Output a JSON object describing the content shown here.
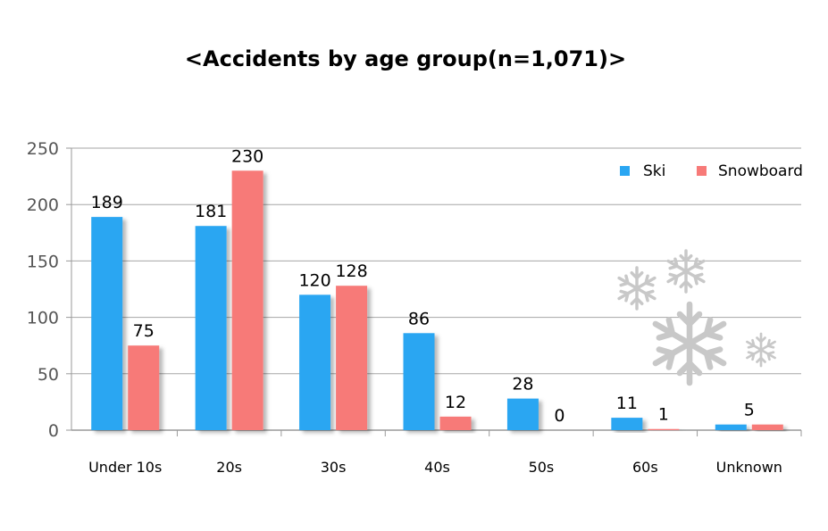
{
  "chart_data": {
    "type": "bar",
    "title": "<Accidents by age group(n=1,071)>",
    "categories": [
      "Under 10s",
      "20s",
      "30s",
      "40s",
      "50s",
      "60s",
      "Unknown"
    ],
    "series": [
      {
        "name": "Ski",
        "values": [
          189,
          181,
          120,
          86,
          28,
          11,
          5
        ],
        "color": "#2aa6f2"
      },
      {
        "name": "Snowboard",
        "values": [
          75,
          230,
          128,
          12,
          0,
          1,
          5
        ],
        "color": "#f77a78"
      }
    ],
    "labels": [
      {
        "series": 0,
        "index": 0,
        "text": "189",
        "color": "#1e78c8"
      },
      {
        "series": 1,
        "index": 0,
        "text": "75"
      },
      {
        "series": 0,
        "index": 1,
        "text": "181"
      },
      {
        "series": 1,
        "index": 1,
        "text": "230",
        "color": "#e21d1d"
      },
      {
        "series": 0,
        "index": 2,
        "text": "120"
      },
      {
        "series": 1,
        "index": 2,
        "text": "128"
      },
      {
        "series": 0,
        "index": 3,
        "text": "86"
      },
      {
        "series": 1,
        "index": 3,
        "text": "12"
      },
      {
        "series": 0,
        "index": 4,
        "text": "28"
      },
      {
        "series": 1,
        "index": 4,
        "text": "0"
      },
      {
        "series": 0,
        "index": 5,
        "text": "11"
      },
      {
        "series": 1,
        "index": 5,
        "text": "1"
      },
      {
        "shared": true,
        "index": 6,
        "text": "5"
      }
    ],
    "ylim": [
      0,
      250
    ],
    "yticks": [
      0,
      50,
      100,
      150,
      200,
      250
    ],
    "grid": true,
    "legend": "top-right",
    "xlabel": "",
    "ylabel": ""
  }
}
